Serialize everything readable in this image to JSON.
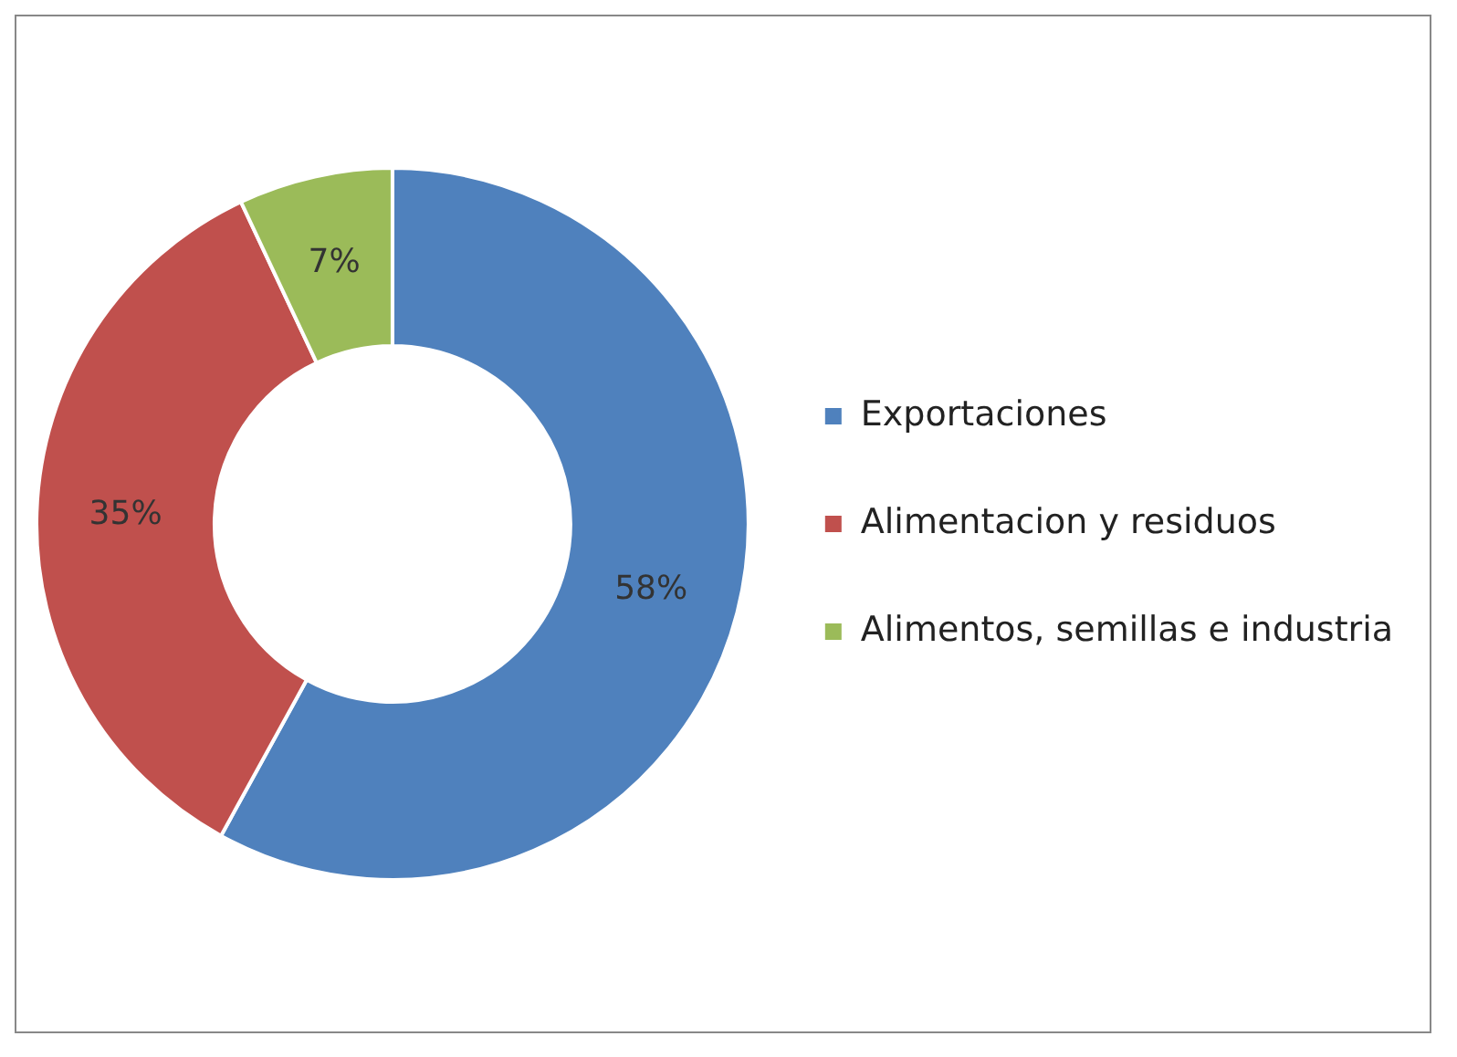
{
  "chart_data": {
    "type": "donut",
    "categories": [
      "Exportaciones",
      "Alimentacion y residuos",
      "Alimentos, semillas e industria"
    ],
    "values": [
      58,
      35,
      7
    ],
    "colors": [
      "#4f81bd",
      "#c0504d",
      "#9bbb59"
    ],
    "value_labels": [
      "58%",
      "35%",
      "7%"
    ],
    "legend": "right"
  }
}
